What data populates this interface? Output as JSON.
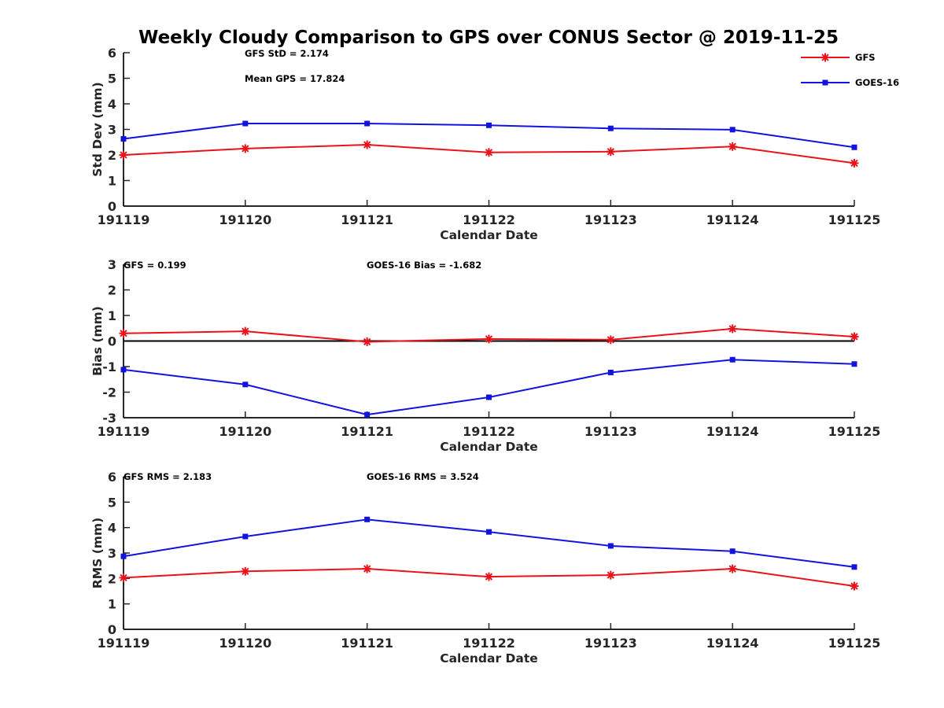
{
  "figure": {
    "title": "Weekly Cloudy Comparison to GPS over CONUS Sector @ 2019-11-25",
    "legend": {
      "placement": "top-right",
      "entries": [
        "GFS",
        "GOES-16"
      ]
    },
    "colors": {
      "GFS": "#e8141a",
      "GOES-16": "#1313e0"
    }
  },
  "chart_data": [
    {
      "type": "line",
      "id": "stddev",
      "xlabel": "Calendar Date",
      "ylabel": "Std Dev (mm)",
      "ylim": [
        0,
        6
      ],
      "yticks": [
        0,
        1,
        2,
        3,
        4,
        5,
        6
      ],
      "categories": [
        "191119",
        "191120",
        "191121",
        "191122",
        "191123",
        "191124",
        "191125"
      ],
      "series": [
        {
          "name": "GFS",
          "color": "#e8141a",
          "marker": "asterisk",
          "values": [
            2.0,
            2.25,
            2.4,
            2.1,
            2.13,
            2.33,
            1.68
          ]
        },
        {
          "name": "GOES-16",
          "color": "#1313e0",
          "marker": "square",
          "values": [
            2.63,
            3.23,
            3.23,
            3.16,
            3.04,
            2.99,
            2.3
          ]
        }
      ],
      "annotations": [
        "GFS StD = 2.174",
        "Mean GPS = 17.824"
      ],
      "zero_line": false
    },
    {
      "type": "line",
      "id": "bias",
      "xlabel": "Calendar Date",
      "ylabel": "Bias (mm)",
      "ylim": [
        -3,
        3
      ],
      "yticks": [
        -3,
        -2,
        -1,
        0,
        1,
        2,
        3
      ],
      "categories": [
        "191119",
        "191120",
        "191121",
        "191122",
        "191123",
        "191124",
        "191125"
      ],
      "series": [
        {
          "name": "GFS",
          "color": "#e8141a",
          "marker": "asterisk",
          "values": [
            0.3,
            0.38,
            -0.03,
            0.08,
            0.05,
            0.48,
            0.17
          ]
        },
        {
          "name": "GOES-16",
          "color": "#1313e0",
          "marker": "square",
          "values": [
            -1.12,
            -1.7,
            -2.88,
            -2.2,
            -1.23,
            -0.73,
            -0.9
          ]
        }
      ],
      "annotations": [
        "GFS = 0.199",
        "GOES-16 Bias  = -1.682"
      ],
      "zero_line": true
    },
    {
      "type": "line",
      "id": "rms",
      "xlabel": "Calendar Date",
      "ylabel": "RMS (mm)",
      "ylim": [
        0,
        6
      ],
      "yticks": [
        0,
        1,
        2,
        3,
        4,
        5,
        6
      ],
      "categories": [
        "191119",
        "191120",
        "191121",
        "191122",
        "191123",
        "191124",
        "191125"
      ],
      "series": [
        {
          "name": "GFS",
          "color": "#e8141a",
          "marker": "asterisk",
          "values": [
            2.03,
            2.28,
            2.38,
            2.07,
            2.13,
            2.38,
            1.7
          ]
        },
        {
          "name": "GOES-16",
          "color": "#1313e0",
          "marker": "square",
          "values": [
            2.87,
            3.65,
            4.32,
            3.83,
            3.28,
            3.07,
            2.45
          ]
        }
      ],
      "annotations": [
        "GFS RMS = 2.183",
        "GOES-16 RMS = 3.524"
      ],
      "zero_line": false
    }
  ]
}
